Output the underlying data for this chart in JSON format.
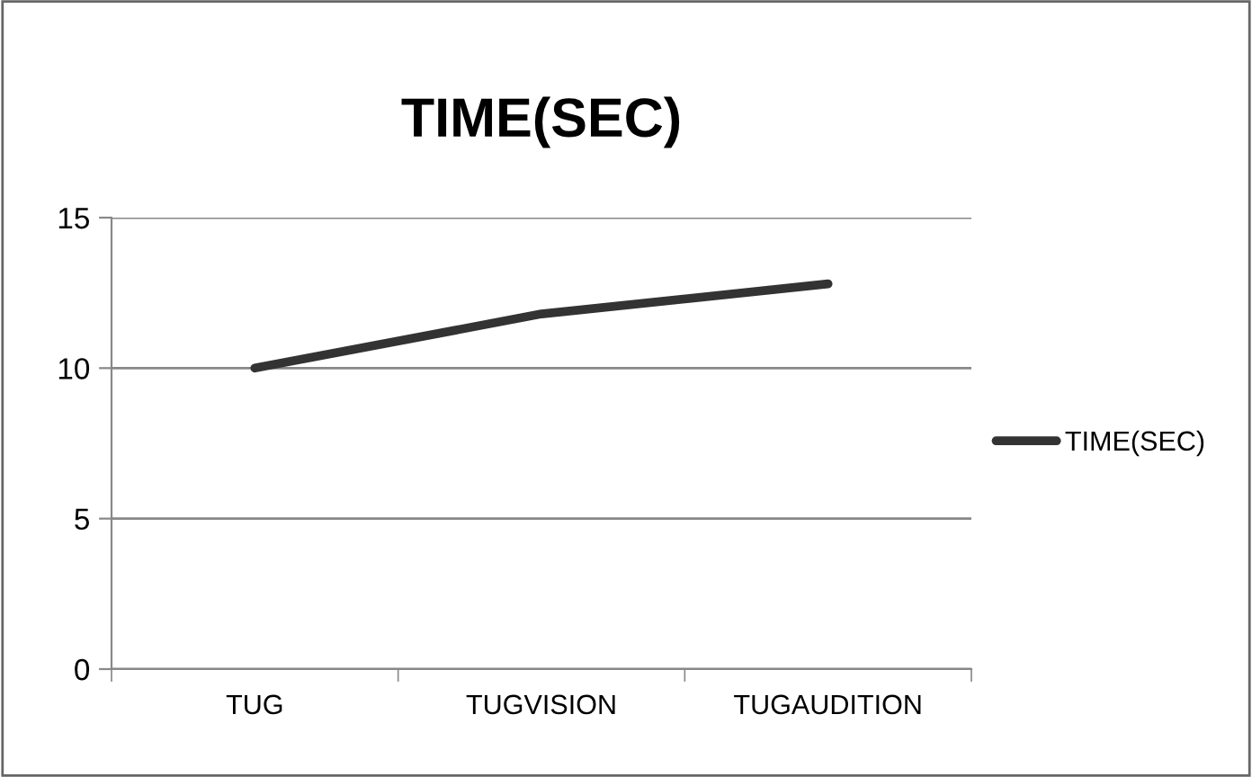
{
  "chart_data": {
    "type": "line",
    "title": "TIME(SEC)",
    "categories": [
      "TUG",
      "TUGVISION",
      "TUGAUDITION"
    ],
    "series": [
      {
        "name": "TIME(SEC)",
        "color": "#333333",
        "values": [
          10.0,
          11.8,
          12.8
        ]
      }
    ],
    "ylim": [
      0,
      15
    ],
    "yticks": [
      0,
      5,
      10,
      15
    ],
    "grid": "y",
    "legend": "right",
    "marker": "none",
    "line_style": "solid"
  }
}
